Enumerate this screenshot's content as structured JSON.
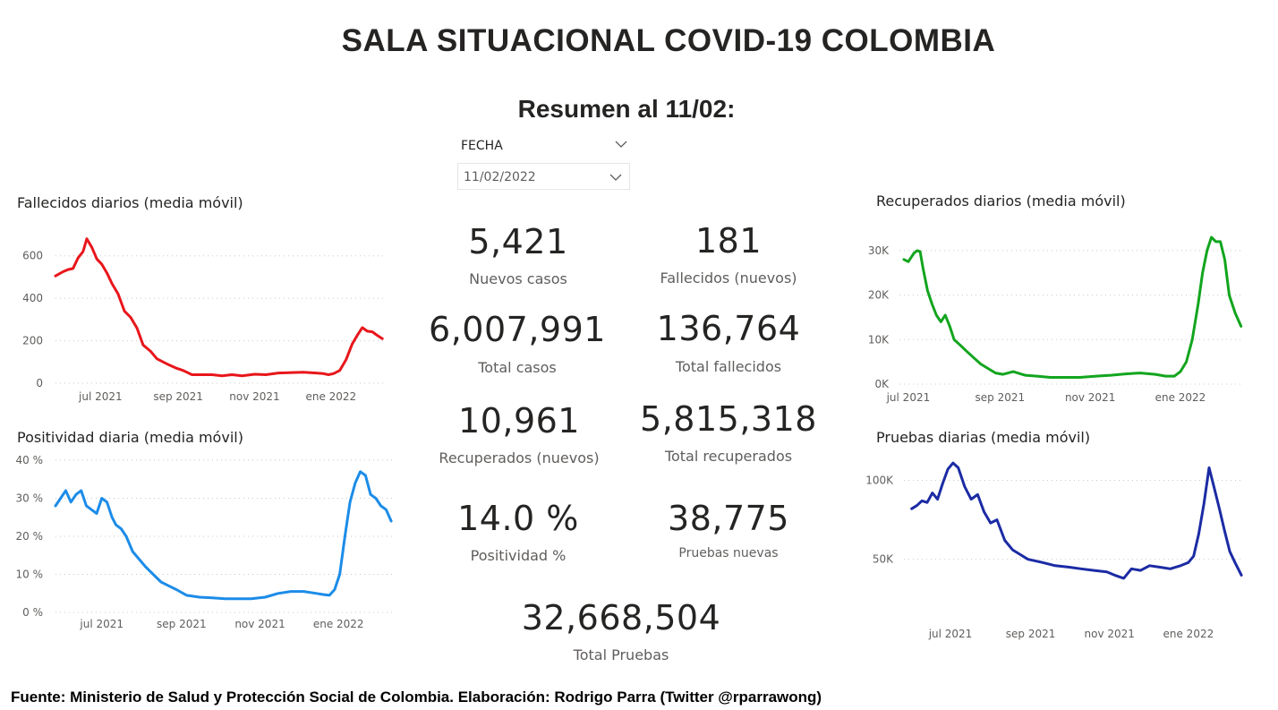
{
  "header": {
    "title": "SALA SITUACIONAL COVID-19 COLOMBIA",
    "subtitle": "Resumen al 11/02:"
  },
  "slicer": {
    "label": "FECHA",
    "value": "11/02/2022"
  },
  "kpis": {
    "nuevos_casos": {
      "value": "5,421",
      "label": "Nuevos casos"
    },
    "fallecidos_nuevos": {
      "value": "181",
      "label": "Fallecidos (nuevos)"
    },
    "total_casos": {
      "value": "6,007,991",
      "label": "Total casos"
    },
    "total_fallecidos": {
      "value": "136,764",
      "label": "Total fallecidos"
    },
    "recuperados_nuevos": {
      "value": "10,961",
      "label": "Recuperados (nuevos)"
    },
    "total_recuperados": {
      "value": "5,815,318",
      "label": "Total recuperados"
    },
    "positividad": {
      "value": "14.0 %",
      "label": "Positividad %"
    },
    "pruebas_nuevas": {
      "value": "38,775",
      "label": "Pruebas nuevas"
    },
    "total_pruebas": {
      "value": "32,668,504",
      "label": "Total Pruebas"
    }
  },
  "footer": {
    "text": "Fuente: Ministerio de Salud y Protección Social de Colombia. Elaboración: Rodrigo Parra (Twitter @rparrawong)"
  },
  "chart_data": [
    {
      "id": "fallecidos",
      "type": "line",
      "title": "Fallecidos diarios (media móvil)",
      "color": "#e8161b",
      "grid": true,
      "ylim": [
        0,
        700
      ],
      "yticks": [
        0,
        200,
        400,
        600
      ],
      "ytick_labels": [
        "0",
        "200",
        "400",
        "600"
      ],
      "xlim": [
        "2021-05-26",
        "2022-02-13"
      ],
      "xticks": [
        "2021-07-01",
        "2021-09-01",
        "2021-11-01",
        "2022-01-01"
      ],
      "xtick_labels": [
        "jul 2021",
        "sep 2021",
        "nov 2021",
        "ene 2022"
      ],
      "series": [
        {
          "x": [
            "2021-05-26",
            "2021-06-01",
            "2021-06-05",
            "2021-06-09",
            "2021-06-13",
            "2021-06-17",
            "2021-06-20",
            "2021-06-24",
            "2021-06-28",
            "2021-07-02",
            "2021-07-06",
            "2021-07-10",
            "2021-07-15",
            "2021-07-20",
            "2021-07-25",
            "2021-07-30",
            "2021-08-04",
            "2021-08-10",
            "2021-08-15",
            "2021-08-20",
            "2021-08-25",
            "2021-08-30",
            "2021-09-05",
            "2021-09-12",
            "2021-09-20",
            "2021-09-28",
            "2021-10-06",
            "2021-10-14",
            "2021-10-22",
            "2021-11-01",
            "2021-11-10",
            "2021-11-20",
            "2021-12-01",
            "2021-12-10",
            "2021-12-20",
            "2021-12-26",
            "2021-12-30",
            "2022-01-03",
            "2022-01-08",
            "2022-01-13",
            "2022-01-18",
            "2022-01-22",
            "2022-01-26",
            "2022-01-30",
            "2022-02-03",
            "2022-02-07",
            "2022-02-11"
          ],
          "y": [
            505,
            525,
            535,
            540,
            590,
            620,
            680,
            640,
            585,
            560,
            520,
            470,
            420,
            340,
            310,
            260,
            180,
            150,
            115,
            100,
            85,
            72,
            60,
            40,
            40,
            40,
            35,
            40,
            35,
            42,
            40,
            48,
            50,
            52,
            48,
            45,
            40,
            45,
            60,
            110,
            185,
            225,
            262,
            245,
            242,
            225,
            210
          ]
        }
      ]
    },
    {
      "id": "positividad",
      "type": "line",
      "title": "Positividad diaria (media móvil)",
      "color": "#1c8ce8",
      "grid": true,
      "ylim": [
        0,
        40
      ],
      "yticks": [
        0,
        10,
        20,
        30,
        40
      ],
      "ytick_labels": [
        "0 %",
        "10 %",
        "20 %",
        "30 %",
        "40 %"
      ],
      "xlim": [
        "2021-05-26",
        "2022-02-13"
      ],
      "xticks": [
        "2021-07-01",
        "2021-09-01",
        "2021-11-01",
        "2022-01-01"
      ],
      "xtick_labels": [
        "jul 2021",
        "sep 2021",
        "nov 2021",
        "ene 2022"
      ],
      "series": [
        {
          "x": [
            "2021-05-26",
            "2021-05-30",
            "2021-06-03",
            "2021-06-07",
            "2021-06-11",
            "2021-06-15",
            "2021-06-19",
            "2021-06-23",
            "2021-06-27",
            "2021-07-01",
            "2021-07-05",
            "2021-07-09",
            "2021-07-12",
            "2021-07-16",
            "2021-07-20",
            "2021-07-25",
            "2021-07-30",
            "2021-08-04",
            "2021-08-10",
            "2021-08-16",
            "2021-08-22",
            "2021-08-28",
            "2021-09-05",
            "2021-09-15",
            "2021-09-25",
            "2021-10-05",
            "2021-10-15",
            "2021-10-25",
            "2021-11-05",
            "2021-11-15",
            "2021-11-25",
            "2021-12-05",
            "2021-12-15",
            "2021-12-20",
            "2021-12-25",
            "2021-12-29",
            "2022-01-02",
            "2022-01-06",
            "2022-01-10",
            "2022-01-14",
            "2022-01-18",
            "2022-01-22",
            "2022-01-26",
            "2022-01-30",
            "2022-02-03",
            "2022-02-07",
            "2022-02-11"
          ],
          "y": [
            28,
            30,
            32,
            29,
            31,
            32,
            28,
            27,
            26,
            30,
            29,
            25,
            23,
            22,
            20,
            16,
            14,
            12,
            10,
            8,
            7,
            6,
            4.5,
            4,
            3.8,
            3.6,
            3.6,
            3.6,
            4,
            5,
            5.5,
            5.5,
            5,
            4.7,
            4.5,
            6,
            10,
            20,
            29,
            34,
            37,
            36,
            31,
            30,
            28,
            27,
            24
          ]
        }
      ]
    },
    {
      "id": "recuperados",
      "type": "line",
      "title": "Recuperados diarios (media móvil)",
      "color": "#12a51e",
      "grid": true,
      "ylim": [
        0,
        34000
      ],
      "yticks": [
        0,
        10000,
        20000,
        30000
      ],
      "ytick_labels": [
        "0K",
        "10K",
        "20K",
        "30K"
      ],
      "xlim": [
        "2021-06-25",
        "2022-02-13"
      ],
      "xticks": [
        "2021-07-01",
        "2021-09-01",
        "2021-11-01",
        "2022-01-01"
      ],
      "xtick_labels": [
        "jul 2021",
        "sep 2021",
        "nov 2021",
        "ene 2022"
      ],
      "series": [
        {
          "x": [
            "2021-06-28",
            "2021-07-01",
            "2021-07-03",
            "2021-07-05",
            "2021-07-07",
            "2021-07-09",
            "2021-07-11",
            "2021-07-14",
            "2021-07-17",
            "2021-07-20",
            "2021-07-23",
            "2021-07-26",
            "2021-07-29",
            "2021-08-01",
            "2021-08-05",
            "2021-08-09",
            "2021-08-14",
            "2021-08-19",
            "2021-08-24",
            "2021-08-29",
            "2021-09-03",
            "2021-09-10",
            "2021-09-18",
            "2021-09-26",
            "2021-10-05",
            "2021-10-15",
            "2021-10-25",
            "2021-11-05",
            "2021-11-15",
            "2021-11-25",
            "2021-12-05",
            "2021-12-15",
            "2021-12-22",
            "2021-12-28",
            "2022-01-01",
            "2022-01-05",
            "2022-01-09",
            "2022-01-13",
            "2022-01-16",
            "2022-01-19",
            "2022-01-22",
            "2022-01-25",
            "2022-01-28",
            "2022-01-31",
            "2022-02-03",
            "2022-02-07",
            "2022-02-11"
          ],
          "y": [
            28000,
            27500,
            28500,
            29500,
            30000,
            29800,
            26000,
            21000,
            18000,
            15500,
            14000,
            15500,
            13000,
            10000,
            8800,
            7500,
            6000,
            4500,
            3500,
            2500,
            2200,
            2800,
            2000,
            1800,
            1500,
            1500,
            1500,
            1800,
            2000,
            2300,
            2500,
            2200,
            1800,
            1800,
            2800,
            5000,
            10000,
            18000,
            25000,
            30000,
            33000,
            32000,
            32000,
            28000,
            20000,
            16000,
            13000
          ]
        }
      ]
    },
    {
      "id": "pruebas",
      "type": "line",
      "title": "Pruebas diarias (media móvil)",
      "color": "#1b2ba4",
      "grid": true,
      "ylim": [
        30000,
        115000
      ],
      "yticks": [
        50000,
        100000
      ],
      "ytick_labels": [
        "50K",
        "100K"
      ],
      "xlim": [
        "2021-05-26",
        "2022-02-13"
      ],
      "xticks": [
        "2021-07-01",
        "2021-09-01",
        "2021-11-01",
        "2022-01-01"
      ],
      "xtick_labels": [
        "jul 2021",
        "sep 2021",
        "nov 2021",
        "ene 2022"
      ],
      "series": [
        {
          "x": [
            "2021-06-01",
            "2021-06-05",
            "2021-06-09",
            "2021-06-13",
            "2021-06-17",
            "2021-06-21",
            "2021-06-25",
            "2021-06-29",
            "2021-07-03",
            "2021-07-07",
            "2021-07-12",
            "2021-07-17",
            "2021-07-22",
            "2021-07-27",
            "2021-08-01",
            "2021-08-06",
            "2021-08-12",
            "2021-08-18",
            "2021-08-24",
            "2021-08-30",
            "2021-09-10",
            "2021-09-20",
            "2021-10-01",
            "2021-10-10",
            "2021-10-20",
            "2021-10-30",
            "2021-11-05",
            "2021-11-12",
            "2021-11-18",
            "2021-11-25",
            "2021-12-02",
            "2021-12-10",
            "2021-12-18",
            "2021-12-26",
            "2022-01-01",
            "2022-01-05",
            "2022-01-09",
            "2022-01-13",
            "2022-01-17",
            "2022-01-21",
            "2022-01-25",
            "2022-01-29",
            "2022-02-02",
            "2022-02-06",
            "2022-02-11"
          ],
          "y": [
            82000,
            84000,
            87000,
            86000,
            92000,
            88000,
            98000,
            107000,
            111000,
            108000,
            96000,
            88000,
            91000,
            80000,
            73000,
            75000,
            62000,
            56000,
            53000,
            50000,
            48000,
            46000,
            45000,
            44000,
            43000,
            42000,
            40000,
            38000,
            44000,
            43000,
            46000,
            45000,
            44000,
            46000,
            48000,
            52000,
            66000,
            85000,
            108000,
            95000,
            82000,
            68000,
            55000,
            48000,
            40000
          ]
        }
      ]
    }
  ]
}
